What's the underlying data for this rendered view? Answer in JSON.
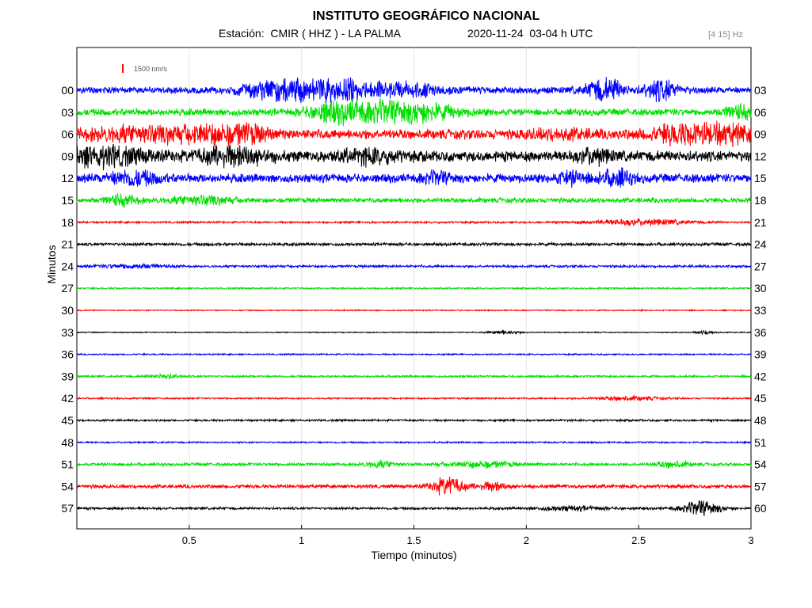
{
  "header": {
    "title": "INSTITUTO GEOGRÁFICO NACIONAL",
    "station": "Estación:  CMIR ( HHZ ) - LA PALMA",
    "datetime": "2020-11-24  03-04 h UTC",
    "filter": "[4 15] Hz"
  },
  "chart_data": {
    "type": "line",
    "title": "INSTITUTO GEOGRÁFICO NACIONAL",
    "xlabel": "Tiempo (minutos)",
    "ylabel": "Minutos",
    "xlim": [
      0,
      3
    ],
    "x_ticks": [
      "0.5",
      "1",
      "1.5",
      "2",
      "2.5",
      "3"
    ],
    "scale_label": "1500 nm/s",
    "colors": {
      "blue": "#0000ff",
      "green": "#00e000",
      "red": "#ff0000",
      "black": "#000000"
    },
    "rows": [
      {
        "left": "00",
        "right": "03",
        "color": "blue",
        "amp": 0.35,
        "bursts": [
          [
            0.9,
            0.1,
            0.9
          ],
          [
            1.15,
            0.15,
            1.0
          ],
          [
            1.5,
            0.1,
            0.5
          ],
          [
            2.35,
            0.05,
            1.4
          ],
          [
            2.6,
            0.05,
            1.0
          ]
        ]
      },
      {
        "left": "03",
        "right": "06",
        "color": "green",
        "amp": 0.35,
        "bursts": [
          [
            1.2,
            0.1,
            1.2
          ],
          [
            1.42,
            0.15,
            1.4
          ],
          [
            2.95,
            0.05,
            0.6
          ]
        ]
      },
      {
        "left": "06",
        "right": "09",
        "color": "red",
        "amp": 0.5,
        "bursts": [
          [
            0.3,
            0.2,
            0.6
          ],
          [
            0.68,
            0.1,
            1.2
          ],
          [
            2.15,
            0.1,
            0.3
          ],
          [
            2.78,
            0.12,
            1.6
          ]
        ]
      },
      {
        "left": "09",
        "right": "12",
        "color": "black",
        "amp": 0.55,
        "bursts": [
          [
            0.1,
            0.15,
            0.8
          ],
          [
            0.7,
            0.1,
            0.9
          ],
          [
            1.3,
            0.1,
            0.5
          ],
          [
            2.3,
            0.05,
            0.6
          ]
        ]
      },
      {
        "left": "12",
        "right": "15",
        "color": "blue",
        "amp": 0.45,
        "bursts": [
          [
            0.25,
            0.08,
            0.6
          ],
          [
            1.6,
            0.05,
            0.4
          ],
          [
            2.2,
            0.05,
            0.5
          ],
          [
            2.4,
            0.05,
            0.7
          ]
        ]
      },
      {
        "left": "15",
        "right": "18",
        "color": "green",
        "amp": 0.25,
        "bursts": [
          [
            0.2,
            0.05,
            0.5
          ],
          [
            0.55,
            0.1,
            0.4
          ]
        ]
      },
      {
        "left": "18",
        "right": "21",
        "color": "red",
        "amp": 0.1,
        "bursts": [
          [
            2.5,
            0.15,
            0.3
          ]
        ]
      },
      {
        "left": "21",
        "right": "24",
        "color": "black",
        "amp": 0.15,
        "bursts": []
      },
      {
        "left": "24",
        "right": "27",
        "color": "blue",
        "amp": 0.12,
        "bursts": [
          [
            0.25,
            0.1,
            0.2
          ]
        ]
      },
      {
        "left": "27",
        "right": "30",
        "color": "green",
        "amp": 0.08,
        "bursts": []
      },
      {
        "left": "30",
        "right": "33",
        "color": "red",
        "amp": 0.06,
        "bursts": []
      },
      {
        "left": "33",
        "right": "36",
        "color": "black",
        "amp": 0.05,
        "bursts": [
          [
            1.9,
            0.05,
            0.2
          ],
          [
            2.8,
            0.03,
            0.2
          ]
        ]
      },
      {
        "left": "36",
        "right": "39",
        "color": "blue",
        "amp": 0.07,
        "bursts": []
      },
      {
        "left": "39",
        "right": "42",
        "color": "green",
        "amp": 0.1,
        "bursts": [
          [
            0.4,
            0.05,
            0.2
          ]
        ]
      },
      {
        "left": "42",
        "right": "45",
        "color": "red",
        "amp": 0.08,
        "bursts": [
          [
            2.45,
            0.1,
            0.2
          ]
        ]
      },
      {
        "left": "45",
        "right": "48",
        "color": "black",
        "amp": 0.1,
        "bursts": []
      },
      {
        "left": "48",
        "right": "51",
        "color": "blue",
        "amp": 0.08,
        "bursts": []
      },
      {
        "left": "51",
        "right": "54",
        "color": "green",
        "amp": 0.15,
        "bursts": [
          [
            1.35,
            0.05,
            0.3
          ],
          [
            1.8,
            0.1,
            0.3
          ],
          [
            2.65,
            0.05,
            0.3
          ]
        ]
      },
      {
        "left": "54",
        "right": "57",
        "color": "red",
        "amp": 0.18,
        "bursts": [
          [
            1.65,
            0.05,
            0.9
          ],
          [
            1.85,
            0.05,
            0.4
          ]
        ]
      },
      {
        "left": "57",
        "right": "60",
        "color": "black",
        "amp": 0.12,
        "bursts": [
          [
            2.2,
            0.1,
            0.2
          ],
          [
            2.78,
            0.06,
            0.7
          ]
        ]
      }
    ]
  }
}
